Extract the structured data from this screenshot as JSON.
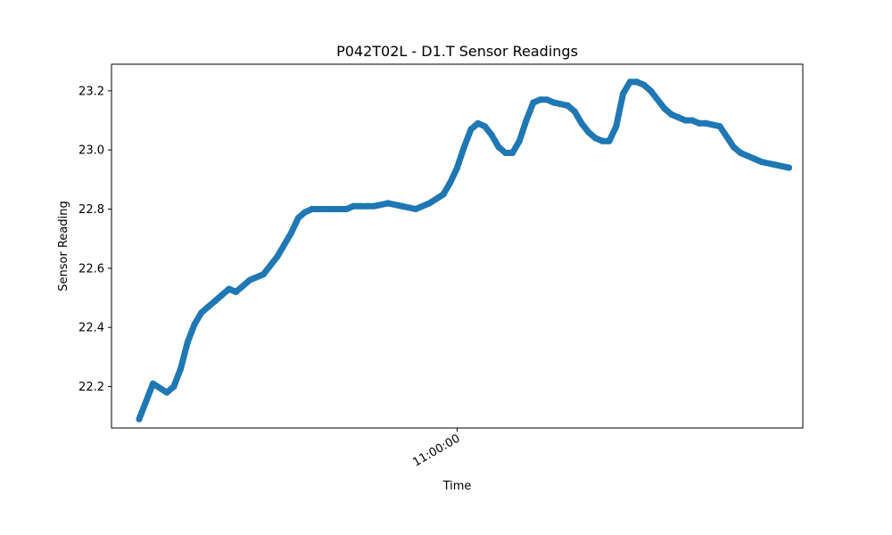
{
  "chart_data": {
    "type": "line",
    "title": "P042T02L - D1.T Sensor Readings",
    "xlabel": "Time",
    "ylabel": "Sensor Reading",
    "grid": false,
    "legend": "none",
    "ylim": [
      22.06,
      23.29
    ],
    "xlim": [
      "10:47:30",
      "11:12:30"
    ],
    "yticks": [
      22.2,
      22.4,
      22.6,
      22.8,
      23.0,
      23.2
    ],
    "xticks": [
      "11:00:00"
    ],
    "colors": {
      "line": "#1f77b4"
    },
    "series": [
      {
        "x": [
          "10:48:30",
          "10:49:00",
          "10:49:30",
          "10:49:45",
          "10:50:00",
          "10:50:15",
          "10:50:30",
          "10:50:45",
          "10:51:00",
          "10:51:15",
          "10:51:30",
          "10:51:45",
          "10:52:00",
          "10:52:30",
          "10:53:00",
          "10:53:30",
          "10:54:00",
          "10:54:15",
          "10:54:30",
          "10:54:45",
          "10:55:00",
          "10:55:15",
          "10:55:30",
          "10:55:45",
          "10:56:00",
          "10:56:15",
          "10:56:30",
          "10:56:45",
          "10:57:00",
          "10:57:30",
          "10:58:00",
          "10:58:30",
          "10:59:00",
          "10:59:30",
          "10:59:45",
          "11:00:00",
          "11:00:15",
          "11:00:30",
          "11:00:45",
          "11:01:00",
          "11:01:15",
          "11:01:30",
          "11:01:45",
          "11:02:00",
          "11:02:15",
          "11:02:30",
          "11:02:45",
          "11:03:00",
          "11:03:15",
          "11:03:30",
          "11:04:00",
          "11:04:15",
          "11:04:30",
          "11:04:45",
          "11:05:00",
          "11:05:15",
          "11:05:30",
          "11:05:45",
          "11:06:00",
          "11:06:15",
          "11:06:30",
          "11:06:45",
          "11:07:00",
          "11:07:30",
          "11:07:45",
          "11:08:00",
          "11:08:15",
          "11:08:30",
          "11:08:45",
          "11:09:00",
          "11:09:30",
          "11:10:00",
          "11:10:15",
          "11:10:30",
          "11:10:45",
          "11:11:00",
          "11:11:30",
          "11:12:00"
        ],
        "y": [
          22.09,
          22.21,
          22.18,
          22.2,
          22.26,
          22.35,
          22.41,
          22.45,
          22.47,
          22.49,
          22.51,
          22.53,
          22.52,
          22.56,
          22.58,
          22.64,
          22.72,
          22.77,
          22.79,
          22.8,
          22.8,
          22.8,
          22.8,
          22.8,
          22.8,
          22.81,
          22.81,
          22.81,
          22.81,
          22.82,
          22.81,
          22.8,
          22.82,
          22.85,
          22.89,
          22.94,
          23.01,
          23.07,
          23.09,
          23.08,
          23.05,
          23.01,
          22.99,
          22.99,
          23.03,
          23.1,
          23.16,
          23.17,
          23.17,
          23.16,
          23.15,
          23.13,
          23.09,
          23.06,
          23.04,
          23.03,
          23.03,
          23.08,
          23.19,
          23.23,
          23.23,
          23.22,
          23.2,
          23.14,
          23.12,
          23.11,
          23.1,
          23.1,
          23.09,
          23.09,
          23.08,
          23.01,
          22.99,
          22.98,
          22.97,
          22.96,
          22.95,
          22.94
        ]
      }
    ]
  }
}
